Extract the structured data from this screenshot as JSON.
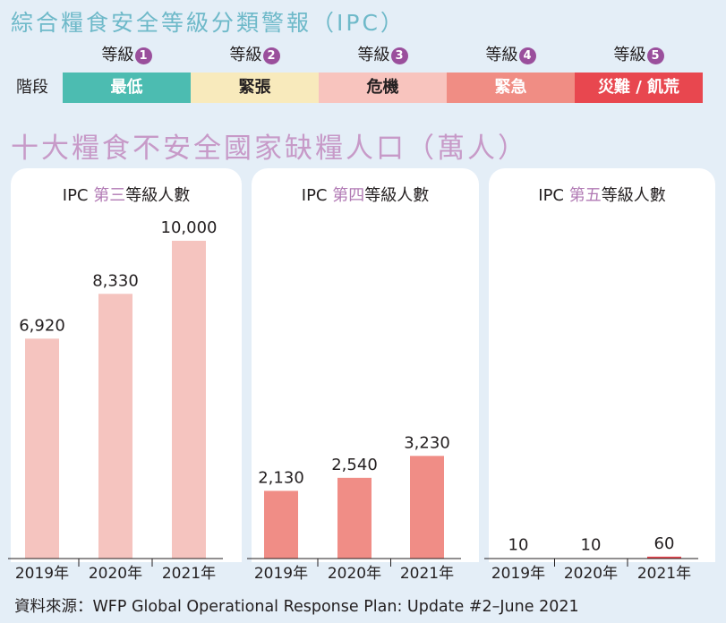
{
  "header": {
    "title": "綜合糧食安全等級分類警報（IPC）",
    "stage_label": "階段",
    "levels": [
      {
        "level_label": "等級",
        "number": "1",
        "name": "最低",
        "bg": "#4cbcb1",
        "fg": "#ffffff"
      },
      {
        "level_label": "等級",
        "number": "2",
        "name": "緊張",
        "bg": "#f8eabc",
        "fg": "#231f20"
      },
      {
        "level_label": "等級",
        "number": "3",
        "name": "危機",
        "bg": "#f8c4be",
        "fg": "#231f20"
      },
      {
        "level_label": "等級",
        "number": "4",
        "name": "緊急",
        "bg": "#f08d84",
        "fg": "#ffffff"
      },
      {
        "level_label": "等級",
        "number": "5",
        "name": "災難 / 飢荒",
        "bg": "#e8474f",
        "fg": "#ffffff"
      }
    ]
  },
  "section_title": "十大糧食不安全國家缺糧人口（萬人）",
  "source": "資料來源：WFP Global Operational Response Plan: Update #2–June 2021",
  "chart_data": [
    {
      "type": "bar",
      "title_prefix": "IPC ",
      "title_highlight": "第三",
      "title_suffix": "等級人數",
      "categories": [
        "2019年",
        "2020年",
        "2021年"
      ],
      "values": [
        6920,
        8330,
        10000
      ],
      "value_labels": [
        "6,920",
        "8,330",
        "10,000"
      ],
      "color": "#f5c4bf",
      "ylim": [
        0,
        10000
      ]
    },
    {
      "type": "bar",
      "title_prefix": "IPC ",
      "title_highlight": "第四",
      "title_suffix": "等級人數",
      "categories": [
        "2019年",
        "2020年",
        "2021年"
      ],
      "values": [
        2130,
        2540,
        3230
      ],
      "value_labels": [
        "2,130",
        "2,540",
        "3,230"
      ],
      "color": "#f08d86",
      "ylim": [
        0,
        10000
      ]
    },
    {
      "type": "bar",
      "title_prefix": "IPC ",
      "title_highlight": "第五",
      "title_suffix": "等級人數",
      "categories": [
        "2019年",
        "2020年",
        "2021年"
      ],
      "values": [
        10,
        10,
        60
      ],
      "value_labels": [
        "10",
        "10",
        "60"
      ],
      "color": "#e8474f",
      "ylim": [
        0,
        10000
      ]
    }
  ]
}
